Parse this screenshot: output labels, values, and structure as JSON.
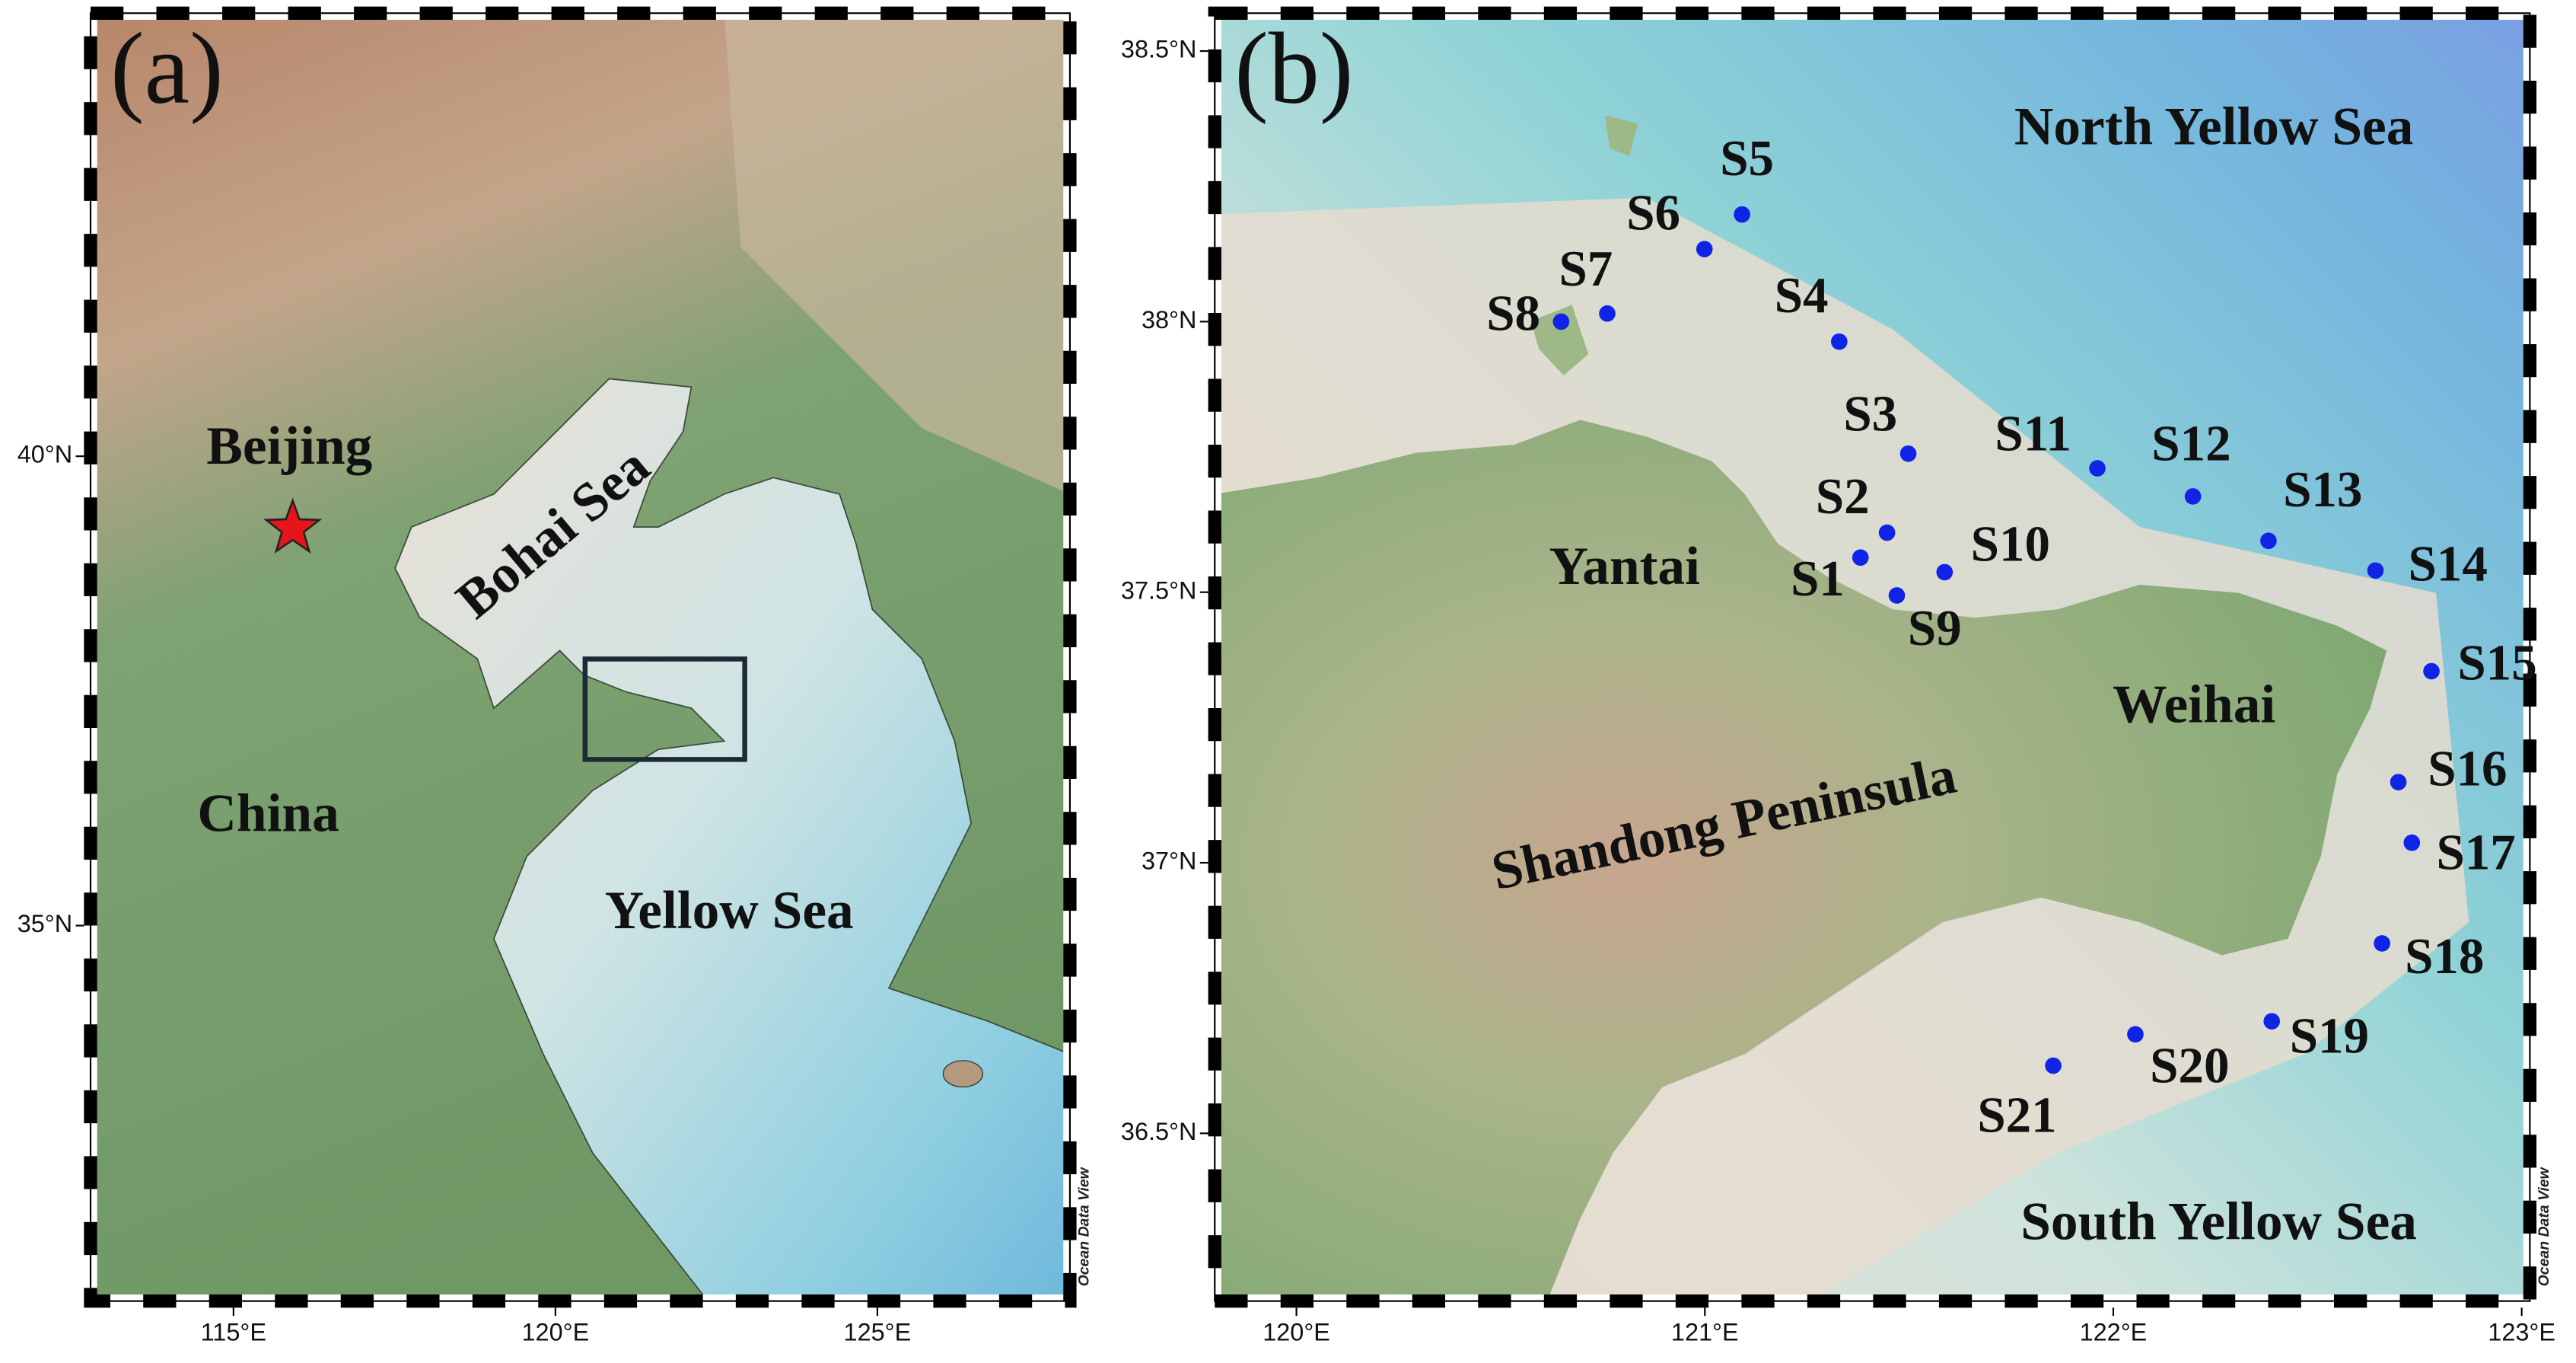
{
  "panels": [
    {
      "label": "(a)",
      "xlim": [
        112.78,
        127.99
      ],
      "ylim": [
        31.0,
        44.72
      ],
      "xticks": [
        {
          "value": 115,
          "label": "115°E"
        },
        {
          "value": 120,
          "label": "120°E"
        },
        {
          "value": 125,
          "label": "125°E"
        }
      ],
      "yticks": [
        {
          "value": 35,
          "label": "35°N"
        },
        {
          "value": 40,
          "label": "40°N"
        }
      ],
      "places": [
        {
          "name": "Beijing",
          "lon": 115.92,
          "lat": 39.23
        }
      ],
      "regions": [
        "China",
        "Bohai Sea",
        "Yellow Sea"
      ],
      "study_area": {
        "lon": [
          120.46,
          122.94
        ],
        "lat": [
          36.77,
          37.84
        ]
      },
      "credit": "Ocean Data View"
    },
    {
      "label": "(b)",
      "xlim": [
        119.8,
        123.02
      ],
      "ylim": [
        36.19,
        38.57
      ],
      "xticks": [
        {
          "value": 120,
          "label": "120°E"
        },
        {
          "value": 121,
          "label": "121°E"
        },
        {
          "value": 122,
          "label": "122°E"
        },
        {
          "value": 123,
          "label": "123°E"
        }
      ],
      "yticks": [
        {
          "value": 36.5,
          "label": "36.5°N"
        },
        {
          "value": 37,
          "label": "37°N"
        },
        {
          "value": 37.5,
          "label": "37.5°N"
        },
        {
          "value": 38,
          "label": "38°N"
        },
        {
          "value": 38.5,
          "label": "38.5°N"
        }
      ],
      "regions": [
        "North Yellow Sea",
        "Yantai",
        "Weihai",
        "Shandong Peninsula",
        "South Yellow Sea"
      ],
      "stations": [
        {
          "name": "S1",
          "lon": 121.381,
          "lat": 37.564
        },
        {
          "name": "S2",
          "lon": 121.446,
          "lat": 37.61
        },
        {
          "name": "S3",
          "lon": 121.498,
          "lat": 37.756
        },
        {
          "name": "S4",
          "lon": 121.329,
          "lat": 37.963
        },
        {
          "name": "S5",
          "lon": 121.091,
          "lat": 38.198
        },
        {
          "name": "S6",
          "lon": 120.999,
          "lat": 38.134
        },
        {
          "name": "S7",
          "lon": 120.761,
          "lat": 38.015
        },
        {
          "name": "S8",
          "lon": 120.648,
          "lat": 38.0
        },
        {
          "name": "S9",
          "lon": 121.47,
          "lat": 37.494
        },
        {
          "name": "S10",
          "lon": 121.587,
          "lat": 37.537
        },
        {
          "name": "S11",
          "lon": 121.961,
          "lat": 37.729
        },
        {
          "name": "S12",
          "lon": 122.195,
          "lat": 37.677
        },
        {
          "name": "S13",
          "lon": 122.38,
          "lat": 37.595
        },
        {
          "name": "S14",
          "lon": 122.642,
          "lat": 37.54
        },
        {
          "name": "S15",
          "lon": 122.779,
          "lat": 37.354
        },
        {
          "name": "S16",
          "lon": 122.698,
          "lat": 37.149
        },
        {
          "name": "S17",
          "lon": 122.731,
          "lat": 37.037
        },
        {
          "name": "S18",
          "lon": 122.658,
          "lat": 36.851
        },
        {
          "name": "S19",
          "lon": 122.388,
          "lat": 36.707
        },
        {
          "name": "S20",
          "lon": 122.054,
          "lat": 36.683
        },
        {
          "name": "S21",
          "lon": 121.853,
          "lat": 36.625
        }
      ],
      "credit": "Ocean Data View"
    }
  ]
}
